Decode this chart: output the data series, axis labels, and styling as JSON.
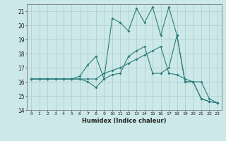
{
  "xlabel": "Humidex (Indice chaleur)",
  "x": [
    0,
    1,
    2,
    3,
    4,
    5,
    6,
    7,
    8,
    9,
    10,
    11,
    12,
    13,
    14,
    15,
    16,
    17,
    18,
    19,
    20,
    21,
    22,
    23
  ],
  "line1": [
    16.2,
    16.2,
    16.2,
    16.2,
    16.2,
    16.2,
    16.4,
    17.2,
    17.8,
    16.2,
    20.5,
    20.2,
    19.6,
    21.2,
    20.2,
    21.3,
    19.3,
    21.3,
    19.3,
    16.0,
    16.0,
    14.8,
    14.6,
    14.5
  ],
  "line2": [
    16.2,
    16.2,
    16.2,
    16.2,
    16.2,
    16.2,
    16.2,
    16.0,
    15.6,
    16.2,
    16.5,
    16.6,
    17.8,
    18.2,
    18.5,
    16.6,
    16.6,
    17.0,
    19.3,
    16.0,
    16.0,
    14.8,
    14.6,
    14.5
  ],
  "line3": [
    16.2,
    16.2,
    16.2,
    16.2,
    16.2,
    16.2,
    16.2,
    16.2,
    16.2,
    16.6,
    16.8,
    17.0,
    17.3,
    17.6,
    17.9,
    18.2,
    18.5,
    16.6,
    16.5,
    16.2,
    16.0,
    16.0,
    14.8,
    14.5
  ],
  "line_color": "#2e7d7d",
  "bg_color": "#cce8e8",
  "grid_color": "#aacccc",
  "ylim": [
    14,
    21.5
  ],
  "xlim": [
    -0.5,
    23.5
  ],
  "yticks": [
    14,
    15,
    16,
    17,
    18,
    19,
    20,
    21
  ],
  "xticks": [
    0,
    1,
    2,
    3,
    4,
    5,
    6,
    7,
    8,
    9,
    10,
    11,
    12,
    13,
    14,
    15,
    16,
    17,
    18,
    19,
    20,
    21,
    22,
    23
  ]
}
